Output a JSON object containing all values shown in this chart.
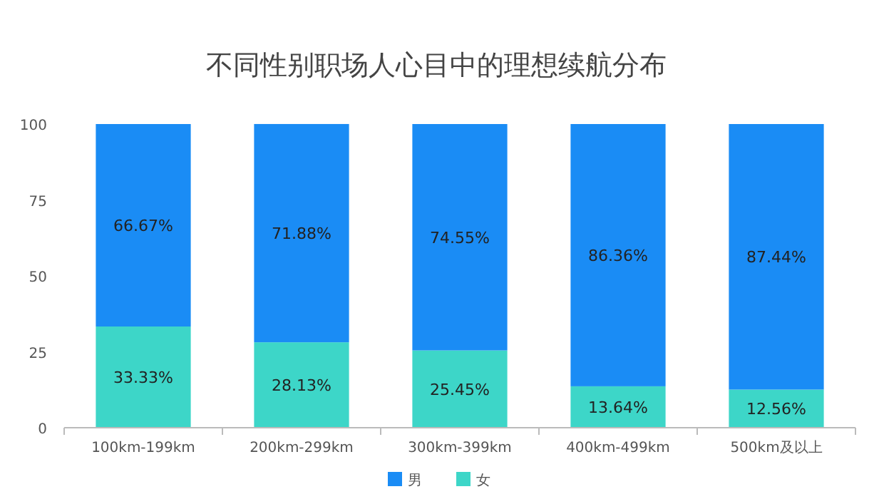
{
  "chart_data": {
    "type": "bar",
    "stacked": true,
    "title": "不同性别职场人心目中的理想续航分布",
    "categories": [
      "100km-199km",
      "200km-299km",
      "300km-399km",
      "400km-499km",
      "500km及以上"
    ],
    "series": [
      {
        "name": "女",
        "color": "#3dd6c8",
        "values": [
          33.33,
          28.13,
          25.45,
          13.64,
          12.56
        ],
        "value_labels": [
          "33.33%",
          "28.13%",
          "25.45%",
          "13.64%",
          "12.56%"
        ]
      },
      {
        "name": "男",
        "color": "#1a8cf5",
        "values": [
          66.67,
          71.88,
          74.55,
          86.36,
          87.44
        ],
        "value_labels": [
          "66.67%",
          "71.88%",
          "74.55%",
          "86.36%",
          "87.44%"
        ]
      }
    ],
    "ylim": [
      0,
      100
    ],
    "yticks": [
      0,
      25,
      50,
      75,
      100
    ],
    "grid": false,
    "legend": "bottom"
  }
}
